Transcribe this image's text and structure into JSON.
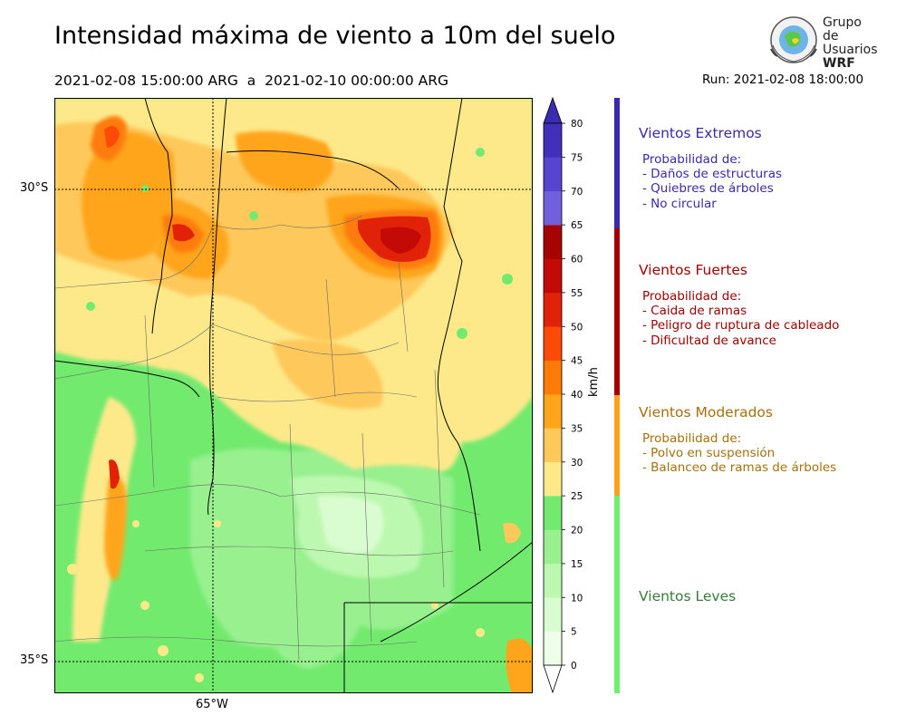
{
  "title": "Intensidad máxima de viento a 10m del suelo",
  "subtitle": "2021-02-08 15:00:00 ARG  a  2021-02-10 00:00:00 ARG",
  "run": "Run: 2021-02-08 18:00:00",
  "logo": {
    "line1": "Grupo de",
    "line2": "Usuarios",
    "line3": "WRF"
  },
  "map": {
    "lat_labels": [
      {
        "text": "30°S",
        "lat": -30
      },
      {
        "text": "35°S",
        "lat": -35
      }
    ],
    "lon_labels": [
      {
        "text": "65°W",
        "lon": -65
      }
    ]
  },
  "colorbar": {
    "unit": "km/h",
    "levels": [
      0,
      5,
      10,
      15,
      20,
      25,
      30,
      35,
      40,
      45,
      50,
      55,
      60,
      65,
      70,
      75,
      80
    ],
    "tick_labels": [
      "0",
      "5",
      "10",
      "15",
      "20",
      "25",
      "30",
      "35",
      "40",
      "45",
      "50",
      "55",
      "60",
      "65",
      "70",
      "75",
      "80"
    ],
    "colors": [
      "#effee9",
      "#d9fcd0",
      "#bdf8b0",
      "#98f08f",
      "#72ea6e",
      "#fde98a",
      "#ffc85a",
      "#ffa51c",
      "#fe7b0a",
      "#fd4a06",
      "#e12208",
      "#c30a06",
      "#a50402",
      "#7060de",
      "#5845cf",
      "#4230bb"
    ],
    "extend_low_color": "#ffffff",
    "extend_high_color": "#3b2bb0"
  },
  "legend": [
    {
      "name": "extremos",
      "title": "Vientos Extremos",
      "color": "#3a2aa8",
      "bar_color": "#3a2aa8",
      "lines": [
        "Probabilidad de:",
        "- Daños de estructuras",
        "- Quiebres de árboles",
        "- No circular"
      ]
    },
    {
      "name": "fuertes",
      "title": "Vientos Fuertes",
      "color": "#a00000",
      "bar_color": "#a50000",
      "lines": [
        "Probabilidad de:",
        "- Caida de ramas",
        "- Peligro de ruptura de cableado",
        "- Dificultad de avance"
      ]
    },
    {
      "name": "moderados",
      "title": "Vientos Moderados",
      "color": "#a8700c",
      "bar_color": "#ffa21a",
      "lines": [
        "Probabilidad de:",
        "- Polvo en suspensión",
        "- Balanceo de ramas de árboles"
      ]
    },
    {
      "name": "leves",
      "title": "Vientos Leves",
      "color": "#3a7a3a",
      "bar_color": "#72ee6e",
      "lines": []
    }
  ]
}
